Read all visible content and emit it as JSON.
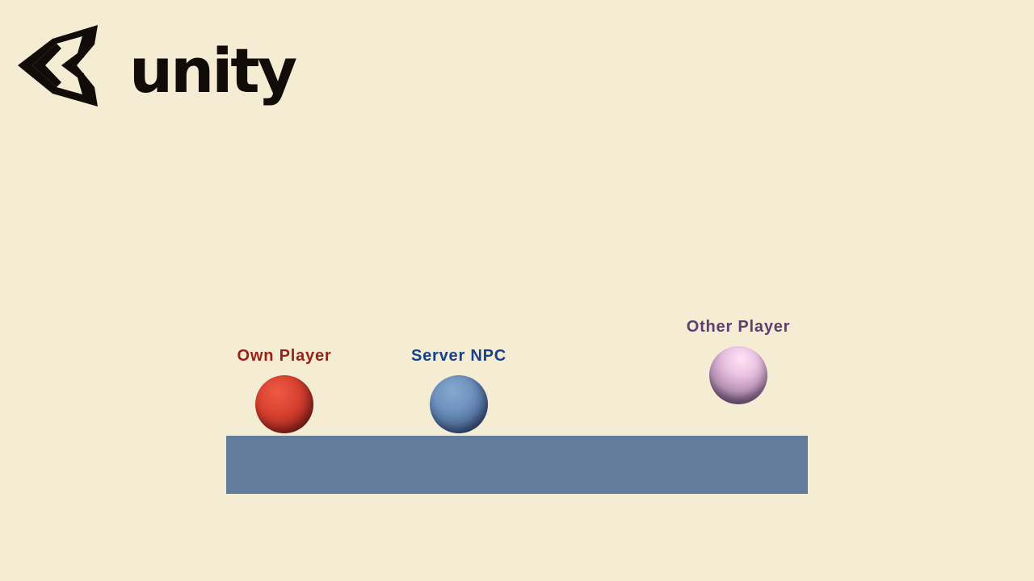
{
  "brand": {
    "logo_text": "unity",
    "logo_icon": "unity-cube-icon"
  },
  "ground": {
    "color": "#637C9C"
  },
  "entities": [
    {
      "label": "Own Player",
      "label_color": "#9A1F14",
      "sphere_color": "#D8412F"
    },
    {
      "label": "Server NPC",
      "label_color": "#15418C",
      "sphere_color": "#5D82AE"
    },
    {
      "label": "Other Player",
      "label_color": "#5E3D70",
      "sphere_color": "#E0B3D8"
    }
  ]
}
